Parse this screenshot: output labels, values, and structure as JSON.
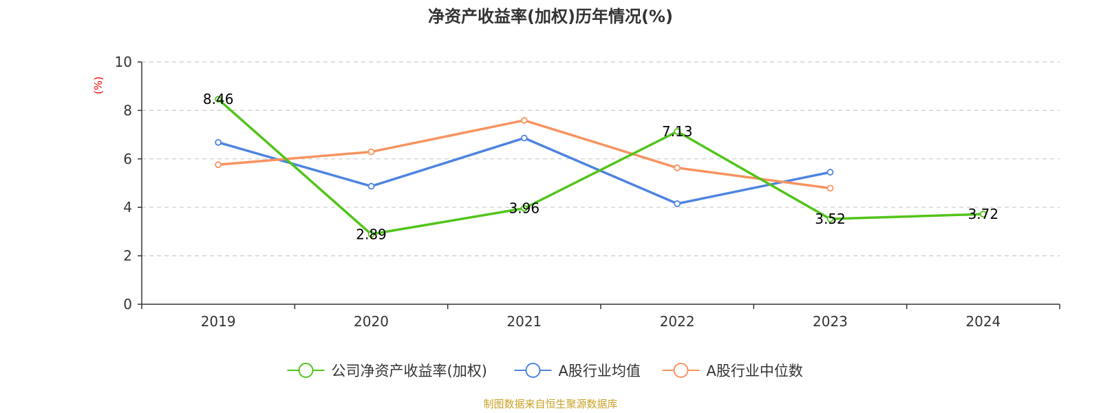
{
  "chart_data": {
    "type": "line",
    "title": "净资产收益率(加权)历年情况(%)",
    "ylabel": "(%)",
    "xlabel": "",
    "categories": [
      "2019",
      "2020",
      "2021",
      "2022",
      "2023",
      "2024"
    ],
    "ylim": [
      0,
      10
    ],
    "yticks": [
      0,
      2,
      4,
      6,
      8,
      10
    ],
    "grid": true,
    "legend_position": "bottom-center",
    "series": [
      {
        "name": "公司净资产收益率(加权)",
        "values": [
          8.46,
          2.89,
          3.96,
          7.13,
          3.52,
          3.72
        ],
        "labels": [
          "8.46",
          "2.89",
          "3.96",
          "7.13",
          "3.52",
          "3.72"
        ],
        "color": "#52c41a"
      },
      {
        "name": "A股行业均值",
        "values": [
          6.68,
          4.87,
          6.86,
          4.15,
          5.45,
          null
        ],
        "color": "#4e84e0"
      },
      {
        "name": "A股行业中位数",
        "values": [
          5.76,
          6.29,
          7.59,
          5.63,
          4.79,
          null
        ],
        "color": "#f79360"
      }
    ]
  },
  "source_note": "制图数据来自恒生聚源数据库",
  "colors": {
    "axis": "#333333",
    "grid": "#cccccc",
    "ylabel": "#ff0000",
    "source": "#c9a227"
  }
}
